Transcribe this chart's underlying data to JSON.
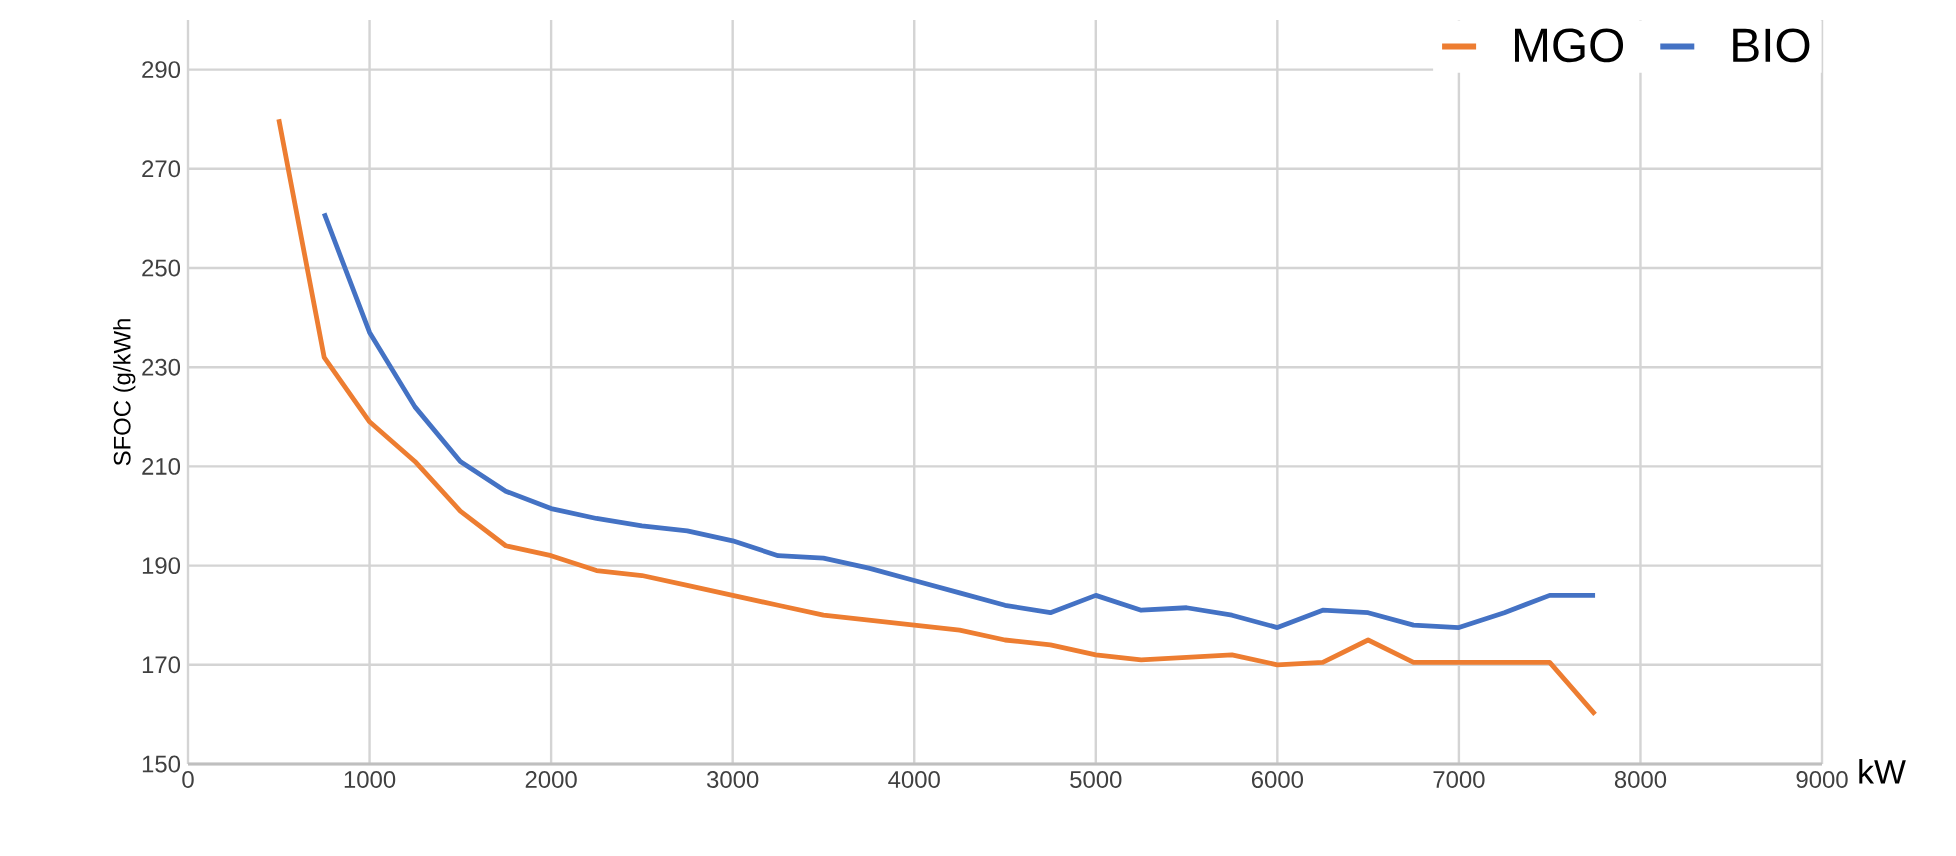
{
  "chart_data": {
    "type": "line",
    "xlabel": "kW",
    "ylabel": "SFOC (g/kWh",
    "x": [
      500,
      750,
      1000,
      1250,
      1500,
      1750,
      2000,
      2250,
      2500,
      2750,
      3000,
      3250,
      3500,
      3750,
      4000,
      4250,
      4500,
      4750,
      5000,
      5250,
      5500,
      5750,
      6000,
      6250,
      6500,
      6750,
      7000,
      7250,
      7500,
      7750
    ],
    "series": [
      {
        "name": "MGO",
        "color": "#ed7d31",
        "values": [
          280,
          232,
          219,
          211,
          201,
          194,
          192,
          189,
          188,
          186,
          184,
          182,
          180,
          179,
          178,
          177,
          175,
          174,
          172,
          171,
          171.5,
          172,
          170,
          170.5,
          175,
          170.5,
          170.5,
          170.5,
          170.5,
          160
        ]
      },
      {
        "name": "BIO",
        "color": "#4472c4",
        "values": [
          null,
          261,
          237,
          222,
          211,
          205,
          201.5,
          199.5,
          198,
          197,
          195,
          192,
          191.5,
          189.5,
          187,
          184.5,
          182,
          180.5,
          184,
          181,
          181.5,
          180,
          177.5,
          181,
          180.5,
          178,
          177.5,
          180.5,
          184,
          184
        ]
      }
    ],
    "xlim": [
      0,
      9000
    ],
    "ylim": [
      150,
      300
    ],
    "xticks": [
      0,
      1000,
      2000,
      3000,
      4000,
      5000,
      6000,
      7000,
      8000,
      9000
    ],
    "yticks": [
      150,
      170,
      190,
      210,
      230,
      250,
      270,
      290
    ],
    "grid": true,
    "legend": "top right",
    "marker": "none",
    "line_style": "solid"
  }
}
